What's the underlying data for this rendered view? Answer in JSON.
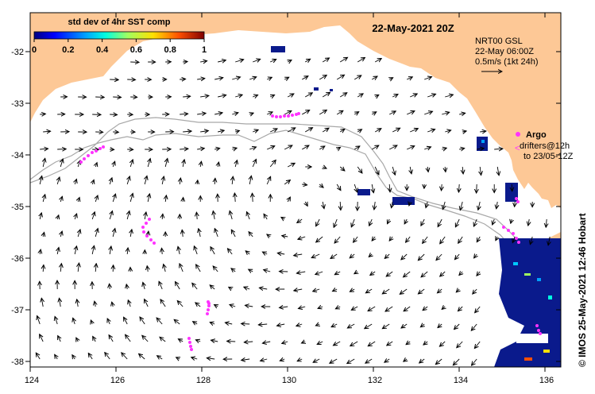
{
  "map": {
    "title": "22-May-2021 20Z",
    "colorbar": {
      "label": "std dev of 4hr SST comp",
      "ticks": [
        "0",
        "0.2",
        "0.4",
        "0.6",
        "0.8",
        "1"
      ]
    },
    "current_legend": {
      "line1": "NRT00 GSL",
      "line2": "22-May 06:00Z",
      "line3": "0.5m/s (1kt 24h)"
    },
    "argo_legend": {
      "label": "Argo",
      "line1": "drifters@12h",
      "line2": "to 23/05-12Z"
    },
    "credit": "© IMOS 25-May-2021 12:46 Hobart",
    "x_ticks": [
      "124",
      "126",
      "128",
      "130",
      "132",
      "134",
      "136"
    ],
    "y_ticks": [
      "-32",
      "-33",
      "-34",
      "-35",
      "-36",
      "-37",
      "-38"
    ],
    "colors": {
      "land": "#fdc896",
      "sea": "#ffffff",
      "argo": "#ff33ff",
      "bathymetry": "#a8a8a8",
      "sst_patch": "#0a1a8c"
    }
  }
}
